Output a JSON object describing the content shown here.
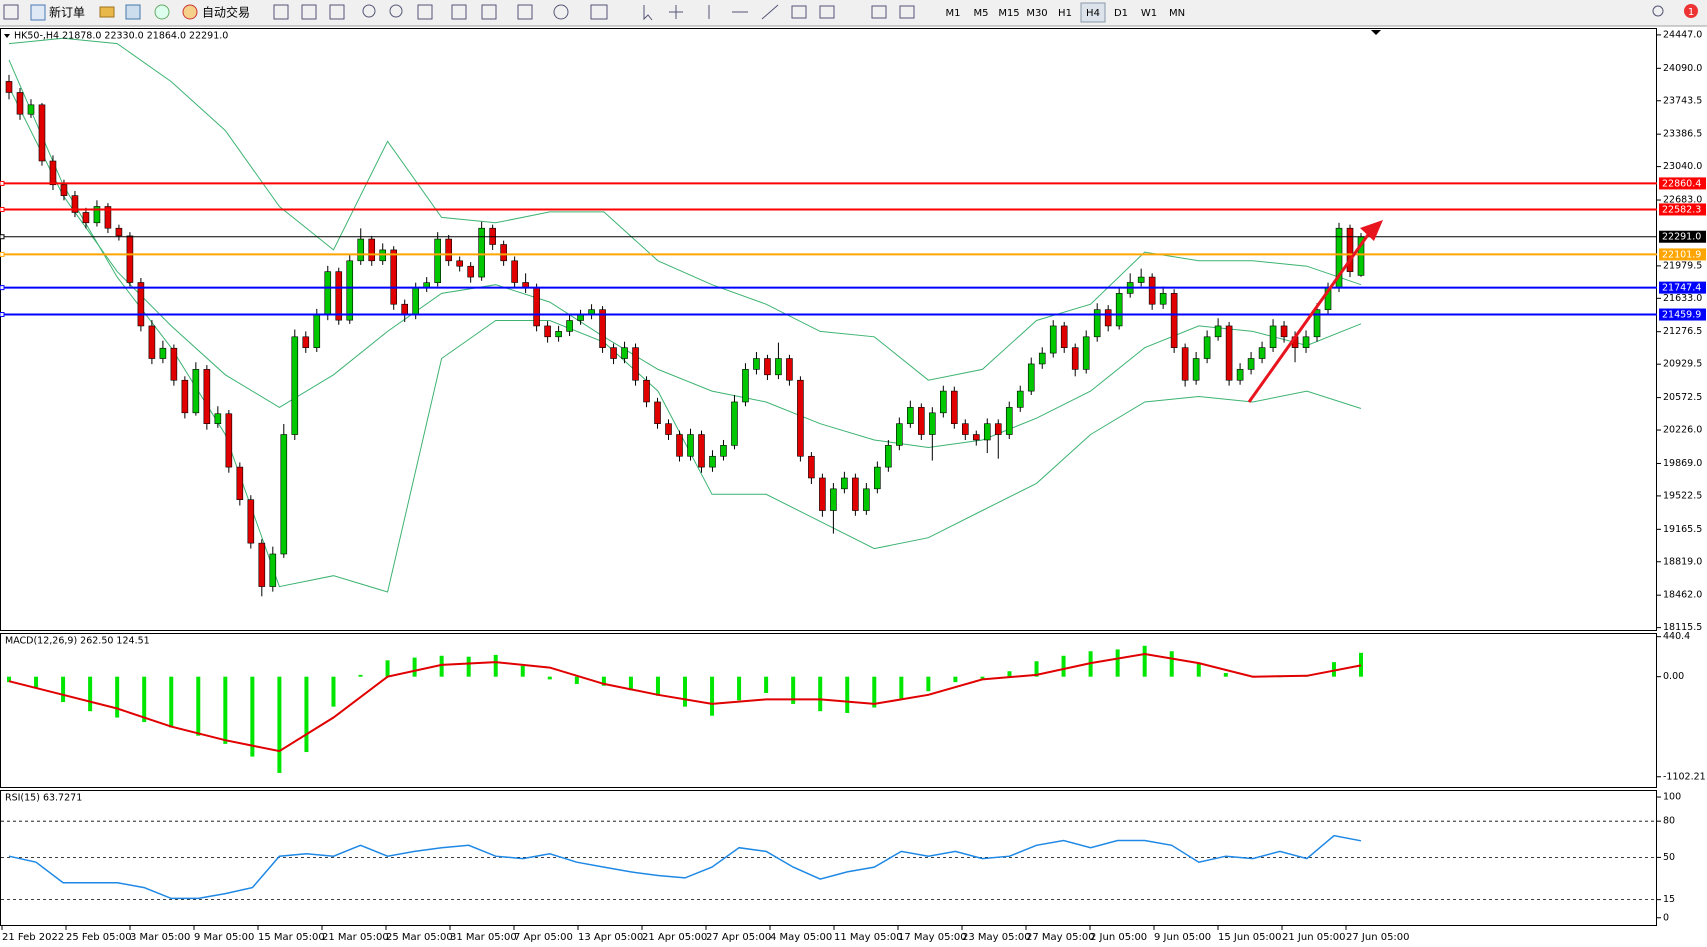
{
  "toolbar": {
    "buttons": [
      "新订单",
      "自动交易"
    ],
    "timeframes": [
      "M1",
      "M5",
      "M15",
      "M30",
      "H1",
      "H4",
      "D1",
      "W1",
      "MN"
    ],
    "active_timeframe": "H4",
    "notifications": "1"
  },
  "chart_data": [
    {
      "type": "candlestick",
      "title": "HK50-,H4  21878.0 22330.0 21864.0 22291.0",
      "up_color": "#00c800",
      "down_color": "#e00000",
      "band_color": "#3cb371",
      "ylim": [
        18090,
        24510
      ],
      "yticks": [
        {
          "value": 24447,
          "label": "24447.0"
        },
        {
          "value": 24090,
          "label": "24090.0"
        },
        23743.5,
        23386.5,
        {
          "value": 23040,
          "label": "23040.0"
        },
        {
          "value": 22683,
          "label": "22683.0"
        },
        21979.5,
        {
          "value": 21633,
          "label": "21633.0"
        },
        21276.5,
        20929.5,
        20572.5,
        {
          "value": 20226,
          "label": "20226.0"
        },
        {
          "value": 19869,
          "label": "19869.0"
        },
        19522.5,
        19165.5,
        {
          "value": 18819,
          "label": "18819.0"
        },
        {
          "value": 18462,
          "label": "18462.0"
        },
        18115.5
      ],
      "levels": [
        {
          "value": 22860.4,
          "color": "#ff0000"
        },
        {
          "value": 22582.3,
          "color": "#ff0000"
        },
        {
          "value": 22291,
          "label": "22291.0",
          "color": "#000000"
        },
        {
          "value": 22101.9,
          "color": "#ffa500"
        },
        {
          "value": 21747.4,
          "color": "#0000ff"
        },
        {
          "value": 21459.9,
          "color": "#0000ff"
        }
      ],
      "x_labels": [
        "21 Feb 2022",
        "25 Feb 05:00",
        "3 Mar 05:00",
        "9 Mar 05:00",
        "15 Mar 05:00",
        "21 Mar 05:00",
        "25 Mar 05:00",
        "31 Mar 05:00",
        "7 Apr 05:00",
        "13 Apr 05:00",
        "21 Apr 05:00",
        "27 Apr 05:00",
        "4 May 05:00",
        "11 May 05:00",
        "17 May 05:00",
        "23 May 05:00",
        "27 May 05:00",
        "2 Jun 05:00",
        "9 Jun 05:00",
        "15 Jun 05:00",
        "21 Jun 05:00",
        "27 Jun 05:00"
      ],
      "ohlc": [
        [
          23950,
          24020,
          23760,
          23832
        ],
        [
          23832,
          23880,
          23540,
          23600
        ],
        [
          23600,
          23760,
          23560,
          23700
        ],
        [
          23700,
          23720,
          23050,
          23100
        ],
        [
          23100,
          23160,
          22790,
          22846
        ],
        [
          22846,
          22900,
          22680,
          22730
        ],
        [
          22730,
          22780,
          22500,
          22550
        ],
        [
          22550,
          22600,
          22380,
          22440
        ],
        [
          22440,
          22680,
          22400,
          22614
        ],
        [
          22614,
          22650,
          22330,
          22382
        ],
        [
          22382,
          22420,
          22250,
          22300
        ],
        [
          22300,
          22340,
          21760,
          21802
        ],
        [
          21802,
          21850,
          21280,
          21338
        ],
        [
          21338,
          21400,
          20930,
          20990
        ],
        [
          20990,
          21180,
          20940,
          21100
        ],
        [
          21100,
          21140,
          20700,
          20758
        ],
        [
          20758,
          20800,
          20350,
          20410
        ],
        [
          20410,
          20950,
          20380,
          20874
        ],
        [
          20874,
          20920,
          20230,
          20294
        ],
        [
          20294,
          20480,
          20250,
          20400
        ],
        [
          20400,
          20440,
          19770,
          19830
        ],
        [
          19830,
          19880,
          19420,
          19482
        ],
        [
          19482,
          19530,
          18960,
          19018
        ],
        [
          19018,
          19060,
          18450,
          18554
        ],
        [
          18554,
          18980,
          18500,
          18902
        ],
        [
          18902,
          20290,
          18860,
          20178
        ],
        [
          20178,
          21300,
          20120,
          21222
        ],
        [
          21222,
          21280,
          21050,
          21106
        ],
        [
          21106,
          21520,
          21060,
          21454
        ],
        [
          21454,
          21980,
          21400,
          21918
        ],
        [
          21918,
          21960,
          21350,
          21400
        ],
        [
          21400,
          22100,
          21360,
          22034
        ],
        [
          22034,
          22380,
          21990,
          22266
        ],
        [
          22266,
          22300,
          21980,
          22034
        ],
        [
          22034,
          22220,
          21990,
          22150
        ],
        [
          22150,
          22190,
          21510,
          21570
        ],
        [
          21570,
          21620,
          21380,
          21454
        ],
        [
          21454,
          21800,
          21410,
          21744
        ],
        [
          21744,
          21860,
          21700,
          21800
        ],
        [
          21800,
          22340,
          21760,
          22266
        ],
        [
          22266,
          22310,
          21980,
          22034
        ],
        [
          22034,
          22080,
          21920,
          21976
        ],
        [
          21976,
          22020,
          21800,
          21860
        ],
        [
          21860,
          22450,
          21820,
          22382
        ],
        [
          22382,
          22420,
          22150,
          22208
        ],
        [
          22208,
          22250,
          21980,
          22034
        ],
        [
          22034,
          22080,
          21750,
          21802
        ],
        [
          21802,
          21900,
          21690,
          21744
        ],
        [
          21744,
          21790,
          21280,
          21338
        ],
        [
          21338,
          21390,
          21160,
          21222
        ],
        [
          21222,
          21340,
          21170,
          21280
        ],
        [
          21280,
          21450,
          21230,
          21396
        ],
        [
          21396,
          21510,
          21350,
          21454
        ],
        [
          21454,
          21570,
          21410,
          21512
        ],
        [
          21512,
          21550,
          21050,
          21106
        ],
        [
          21106,
          21150,
          20930,
          20990
        ],
        [
          20990,
          21170,
          20940,
          21106
        ],
        [
          21106,
          21150,
          20700,
          20758
        ],
        [
          20758,
          20800,
          20470,
          20526
        ],
        [
          20526,
          20570,
          20240,
          20294
        ],
        [
          20294,
          20340,
          20120,
          20178
        ],
        [
          20178,
          20220,
          19890,
          19946
        ],
        [
          19946,
          20240,
          19900,
          20178
        ],
        [
          20178,
          20220,
          19770,
          19830
        ],
        [
          19830,
          20010,
          19780,
          19946
        ],
        [
          19946,
          20120,
          19900,
          20062
        ],
        [
          20062,
          20600,
          20020,
          20526
        ],
        [
          20526,
          20940,
          20480,
          20874
        ],
        [
          20874,
          21060,
          20820,
          20990
        ],
        [
          20990,
          21030,
          20760,
          20816
        ],
        [
          20816,
          21160,
          20770,
          20990
        ],
        [
          20990,
          21030,
          20700,
          20758
        ],
        [
          20758,
          20800,
          19890,
          19946
        ],
        [
          19946,
          19990,
          19650,
          19714
        ],
        [
          19714,
          19760,
          19300,
          19366
        ],
        [
          19366,
          19660,
          19120,
          19598
        ],
        [
          19598,
          19780,
          19550,
          19714
        ],
        [
          19714,
          19760,
          19310,
          19366
        ],
        [
          19366,
          19660,
          19320,
          19598
        ],
        [
          19598,
          19890,
          19550,
          19830
        ],
        [
          19830,
          20120,
          19780,
          20062
        ],
        [
          20062,
          20360,
          20010,
          20294
        ],
        [
          20294,
          20540,
          20250,
          20468
        ],
        [
          20468,
          20510,
          20120,
          20178
        ],
        [
          20178,
          20470,
          19900,
          20410
        ],
        [
          20410,
          20700,
          20360,
          20642
        ],
        [
          20642,
          20690,
          20240,
          20294
        ],
        [
          20294,
          20340,
          20120,
          20178
        ],
        [
          20178,
          20220,
          20060,
          20120
        ],
        [
          20120,
          20350,
          19980,
          20294
        ],
        [
          20294,
          20340,
          19920,
          20178
        ],
        [
          20178,
          20530,
          20130,
          20468
        ],
        [
          20468,
          20700,
          20420,
          20642
        ],
        [
          20642,
          21000,
          20600,
          20932
        ],
        [
          20932,
          21110,
          20880,
          21048
        ],
        [
          21048,
          21400,
          21000,
          21338
        ],
        [
          21338,
          21380,
          21050,
          21106
        ],
        [
          21106,
          21150,
          20800,
          20874
        ],
        [
          20874,
          21290,
          20830,
          21222
        ],
        [
          21222,
          21580,
          21170,
          21512
        ],
        [
          21512,
          21560,
          21280,
          21338
        ],
        [
          21338,
          21750,
          21300,
          21686
        ],
        [
          21686,
          21900,
          21640,
          21802
        ],
        [
          21802,
          21950,
          21760,
          21860
        ],
        [
          21860,
          21900,
          21510,
          21570
        ],
        [
          21570,
          21760,
          21520,
          21686
        ],
        [
          21686,
          21730,
          21050,
          21106
        ],
        [
          21106,
          21150,
          20690,
          20758
        ],
        [
          20758,
          21060,
          20710,
          20990
        ],
        [
          20990,
          21290,
          20940,
          21222
        ],
        [
          21222,
          21420,
          21180,
          21338
        ],
        [
          21338,
          21380,
          20700,
          20758
        ],
        [
          20758,
          20940,
          20710,
          20874
        ],
        [
          20874,
          21060,
          20820,
          20990
        ],
        [
          20990,
          21170,
          20940,
          21106
        ],
        [
          21106,
          21410,
          21060,
          21338
        ],
        [
          21338,
          21390,
          21160,
          21222
        ],
        [
          21222,
          21280,
          20950,
          21106
        ],
        [
          21106,
          21290,
          21050,
          21222
        ],
        [
          21222,
          21580,
          21170,
          21512
        ],
        [
          21512,
          21800,
          21470,
          21744
        ],
        [
          21744,
          22440,
          21700,
          22382
        ],
        [
          22382,
          22420,
          21860,
          21918
        ],
        [
          21878,
          22330,
          21864,
          22291
        ]
      ],
      "bands": [
        [
          24354,
          24412,
          24354,
          23948,
          23426,
          22614,
          22150,
          23310,
          22498,
          22440,
          22556,
          22556,
          22034,
          21779,
          21570,
          21280,
          21222,
          20758,
          20874,
          21396,
          21570,
          22127,
          22034,
          22034,
          21976,
          21779
        ],
        [
          23890,
          22730,
          21918,
          21338,
          20816,
          20468,
          20816,
          21280,
          21686,
          21779,
          21593,
          21222,
          20874,
          20642,
          20526,
          20294,
          20120,
          20039,
          20120,
          20352,
          20642,
          21106,
          21338,
          21280,
          21129,
          21361
        ],
        [
          24180,
          22846,
          21860,
          21106,
          20178,
          18554,
          18670,
          18496,
          20990,
          21396,
          21396,
          21164,
          20642,
          19540,
          19540,
          19250,
          18960,
          19076,
          19366,
          19656,
          20178,
          20526,
          20584,
          20526,
          20642,
          20456
        ]
      ]
    },
    {
      "type": "macd",
      "title": "MACD(12,26,9) 262.50 124.51",
      "hist_color": "#00e600",
      "signal_color": "#e00000",
      "ylim": [
        -1215,
        470
      ],
      "yticks": [
        440.4,
        {
          "value": 0,
          "label": "0.00"
        },
        -1102.21
      ],
      "histogram": [
        -60,
        -120,
        -280,
        -380,
        -450,
        -500,
        -560,
        -650,
        -740,
        -880,
        -1060,
        -830,
        -330,
        20,
        180,
        210,
        230,
        220,
        240,
        120,
        -30,
        -80,
        -100,
        -150,
        -210,
        -330,
        -430,
        -260,
        -180,
        -300,
        -380,
        -400,
        -340,
        -240,
        -160,
        -60,
        -20,
        60,
        170,
        230,
        280,
        300,
        340,
        280,
        140,
        40,
        10,
        0,
        10,
        160,
        262.5
      ],
      "signal": [
        -50,
        -200,
        -350,
        -550,
        -700,
        -820,
        -450,
        0,
        130,
        160,
        100,
        -80,
        -200,
        -300,
        -250,
        -250,
        -300,
        -200,
        -30,
        20,
        150,
        250,
        150,
        0,
        10,
        124.51
      ]
    },
    {
      "type": "rsi",
      "title": "RSI(15) 63.7271",
      "color": "#1e88e5",
      "ylim": [
        -6,
        105
      ],
      "yticks": [
        100,
        80,
        50,
        15,
        0
      ],
      "levels": [
        80,
        50,
        15
      ],
      "values": [
        51,
        46,
        29,
        29,
        29,
        25,
        16,
        16,
        20,
        25,
        51,
        53,
        51,
        60,
        51,
        55,
        58,
        60,
        51,
        49,
        53,
        46,
        42,
        38,
        35,
        33,
        42,
        58,
        55,
        42,
        32,
        38,
        42,
        55,
        51,
        55,
        49,
        51,
        60,
        64,
        58,
        64,
        64,
        60,
        46,
        51,
        49,
        55,
        49,
        68,
        63.7271
      ]
    }
  ]
}
